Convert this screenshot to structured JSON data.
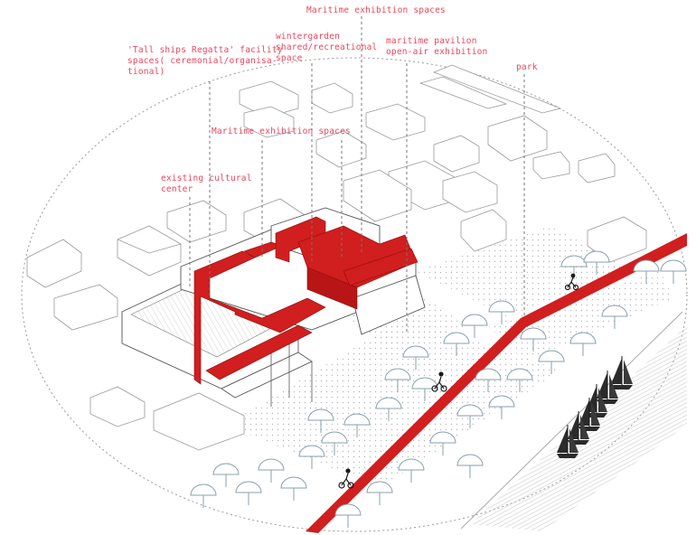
{
  "labels": {
    "maritime_top": "Maritime exhibition spaces",
    "tall_ships_1": "'Tall ships Regatta' facility",
    "tall_ships_2": "spaces( ceremonial/organisa-",
    "tall_ships_3": "tional)",
    "wintergarden_1": "wintergarden",
    "wintergarden_2": "shared/recreational",
    "wintergarden_3": "space",
    "pavilion_1": "maritime pavilion",
    "pavilion_2": "open-air exhibition",
    "park": "park",
    "maritime_mid": "Maritime exhibition spaces",
    "cultural_1": "existing cultural",
    "cultural_2": "center"
  },
  "colors": {
    "accent": "#d11e1e",
    "label": "#e8475f",
    "outline": "#9a9a9a",
    "boat": "#2b2b2b"
  },
  "icons": [
    "cyclist-icon",
    "sailboat-icon",
    "tree-icon"
  ]
}
